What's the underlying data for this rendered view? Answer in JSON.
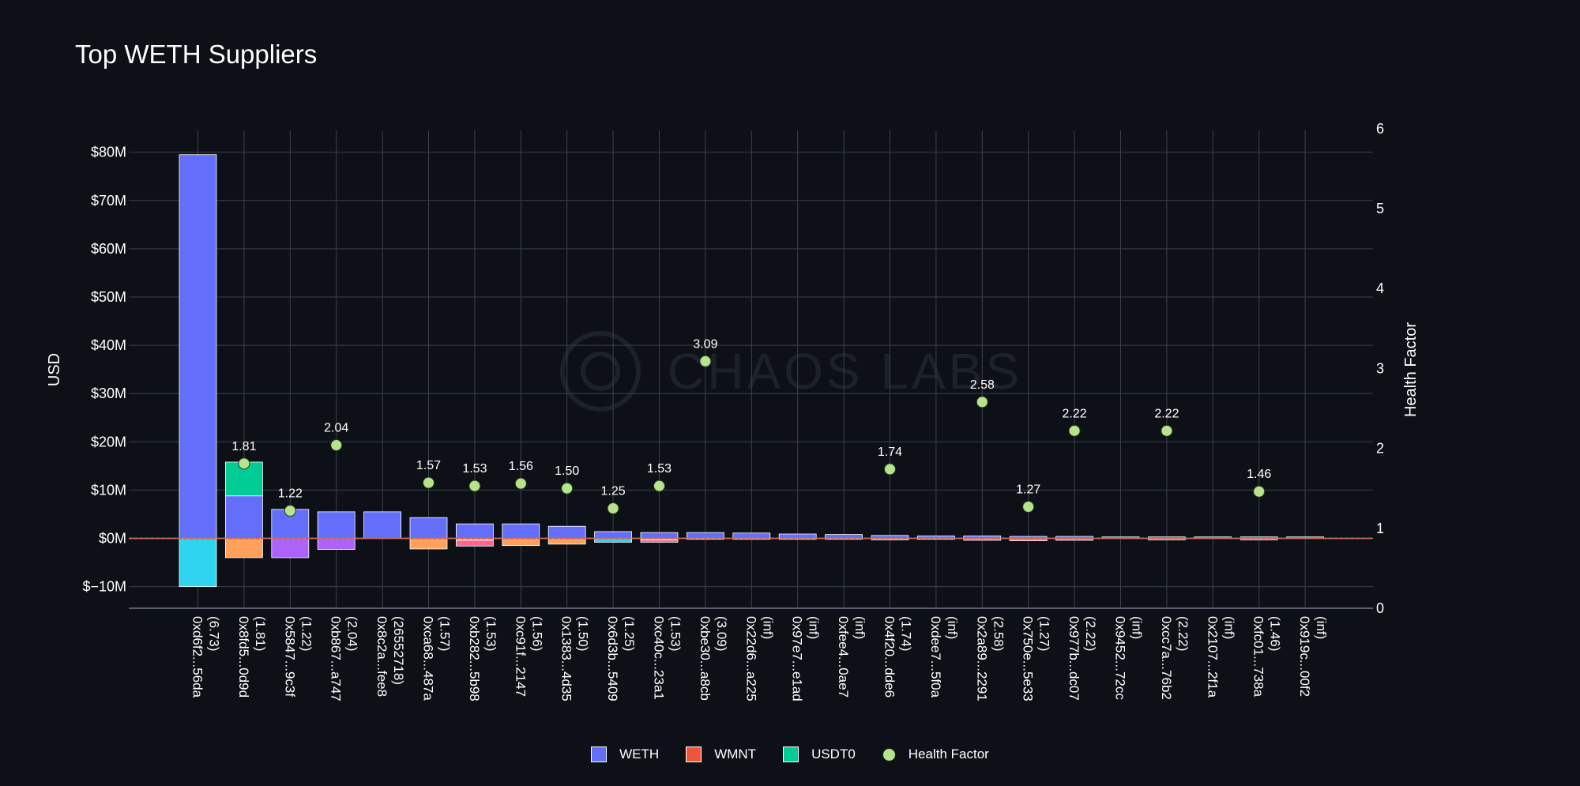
{
  "title": "Top WETH Suppliers",
  "chart_data": {
    "type": "bar",
    "title": "Top WETH Suppliers",
    "ylabel": "USD",
    "y2label": "Health Factor",
    "ylim": [
      -15,
      82
    ],
    "y2lim": [
      0,
      6
    ],
    "yticks": [
      "$80M",
      "$70M",
      "$60M",
      "$50M",
      "$40M",
      "$30M",
      "$20M",
      "$10M",
      "$0M",
      "$−10M"
    ],
    "yticks_values": [
      80,
      70,
      60,
      50,
      40,
      30,
      20,
      10,
      0,
      -10
    ],
    "y2ticks": [
      "6",
      "5",
      "4",
      "3",
      "2",
      "1",
      "0"
    ],
    "y2ticks_values": [
      6,
      5,
      4,
      3,
      2,
      1,
      0
    ],
    "grid": true,
    "stacked": true,
    "legend_position": "bottom-center",
    "categories": [
      [
        "0xd6f2...56da",
        "(6.73)"
      ],
      [
        "0x8fd5...0d9d",
        "(1.81)"
      ],
      [
        "0x5847...9c3f",
        "(1.22)"
      ],
      [
        "0xb867...a747",
        "(2.04)"
      ],
      [
        "0x8c2a...fee8",
        "(26552718)"
      ],
      [
        "0xca68...487a",
        "(1.57)"
      ],
      [
        "0xb282...5b98",
        "(1.53)"
      ],
      [
        "0xc91f...2147",
        "(1.56)"
      ],
      [
        "0x1383...4d35",
        "(1.50)"
      ],
      [
        "0x6d3b...5409",
        "(1.25)"
      ],
      [
        "0xc40c...23a1",
        "(1.53)"
      ],
      [
        "0xbe30...a8cb",
        "(3.09)"
      ],
      [
        "0x22d6...a225",
        "(inf)"
      ],
      [
        "0x97e7...e1ad",
        "(inf)"
      ],
      [
        "0xfee4...0ae7",
        "(inf)"
      ],
      [
        "0x4f20...dde6",
        "(1.74)"
      ],
      [
        "0xdee7...5f0a",
        "(inf)"
      ],
      [
        "0x2a89...2291",
        "(2.58)"
      ],
      [
        "0x750e...5e33",
        "(1.27)"
      ],
      [
        "0x977b...dc07",
        "(2.22)"
      ],
      [
        "0x9452...72cc",
        "(inf)"
      ],
      [
        "0xcc7a...76b2",
        "(2.22)"
      ],
      [
        "0x2107...2f1a",
        "(inf)"
      ],
      [
        "0xfc01...738a",
        "(1.46)"
      ],
      [
        "0x919c...00f2",
        "(inf)"
      ]
    ],
    "series": [
      {
        "name": "WETH",
        "color": "#636efa",
        "values": [
          79.5,
          8.8,
          6.0,
          5.5,
          5.5,
          4.3,
          3.0,
          3.0,
          2.5,
          1.4,
          1.2,
          1.2,
          1.1,
          0.9,
          0.8,
          0.6,
          0.5,
          0.5,
          0.4,
          0.4,
          0.3,
          0.3,
          0.3,
          0.3,
          0.3
        ]
      },
      {
        "name": "WMNT",
        "color": "#ef553b",
        "values": [
          0,
          0,
          0,
          0,
          0,
          0,
          0,
          0,
          0,
          0,
          0,
          0,
          0,
          0,
          0,
          0,
          0,
          0,
          0,
          0,
          0,
          0,
          0,
          0,
          0
        ]
      },
      {
        "name": "USDT0",
        "color": "#00cc96",
        "values": [
          0,
          7.0,
          0,
          0,
          0,
          0,
          0,
          0,
          0,
          0,
          0,
          0,
          0,
          0,
          0,
          0,
          0,
          0,
          0,
          0,
          0,
          0,
          0,
          0,
          0
        ]
      }
    ],
    "negative_series": [
      {
        "name": "debt-cyan",
        "color": "#2ed4ef",
        "values": [
          -10,
          0,
          0,
          0,
          0,
          0,
          0,
          0,
          0,
          -0.8,
          0,
          0,
          0,
          0,
          0,
          0,
          0,
          0,
          0,
          0,
          0,
          0,
          0,
          0,
          0
        ]
      },
      {
        "name": "debt-orange",
        "color": "#ffa15a",
        "values": [
          0,
          -4,
          0,
          0,
          0,
          -2.2,
          -0.4,
          -1.5,
          -1.2,
          0,
          -0.3,
          -0.2,
          0,
          0,
          0,
          -0.3,
          0,
          0,
          0,
          0,
          0,
          0,
          0,
          0,
          0
        ]
      },
      {
        "name": "debt-pink",
        "color": "#ff6692",
        "values": [
          0,
          0,
          0,
          0,
          0,
          0,
          -1.2,
          0,
          0,
          0,
          -0.5,
          0,
          -0.2,
          -0.2,
          -0.2,
          0,
          -0.2,
          -0.4,
          -0.5,
          -0.4,
          0,
          -0.3,
          0,
          -0.3,
          0
        ]
      },
      {
        "name": "debt-purple",
        "color": "#ab63fa",
        "values": [
          0,
          0,
          -4,
          -2.3,
          0,
          0,
          0,
          0,
          0,
          0,
          0,
          0,
          0,
          0,
          0,
          0,
          0,
          0,
          0,
          0,
          0,
          0,
          0,
          0,
          0
        ]
      }
    ],
    "health_factor": {
      "name": "Health Factor",
      "color": "#b5e48c",
      "points": [
        {
          "index": 1,
          "value": 1.81,
          "label": "1.81"
        },
        {
          "index": 2,
          "value": 1.22,
          "label": "1.22"
        },
        {
          "index": 3,
          "value": 2.04,
          "label": "2.04"
        },
        {
          "index": 5,
          "value": 1.57,
          "label": "1.57"
        },
        {
          "index": 6,
          "value": 1.53,
          "label": "1.53"
        },
        {
          "index": 7,
          "value": 1.56,
          "label": "1.56"
        },
        {
          "index": 8,
          "value": 1.5,
          "label": "1.50"
        },
        {
          "index": 9,
          "value": 1.25,
          "label": "1.25"
        },
        {
          "index": 10,
          "value": 1.53,
          "label": "1.53"
        },
        {
          "index": 11,
          "value": 3.09,
          "label": "3.09"
        },
        {
          "index": 15,
          "value": 1.74,
          "label": "1.74"
        },
        {
          "index": 17,
          "value": 2.58,
          "label": "2.58"
        },
        {
          "index": 18,
          "value": 1.27,
          "label": "1.27"
        },
        {
          "index": 19,
          "value": 2.22,
          "label": "2.22"
        },
        {
          "index": 21,
          "value": 2.22,
          "label": "2.22"
        },
        {
          "index": 23,
          "value": 1.46,
          "label": "1.46"
        }
      ],
      "threshold": 1
    }
  },
  "legend": [
    {
      "label": "WETH",
      "color": "#636efa",
      "kind": "bar"
    },
    {
      "label": "WMNT",
      "color": "#ef553b",
      "kind": "bar"
    },
    {
      "label": "USDT0",
      "color": "#00cc96",
      "kind": "bar"
    },
    {
      "label": "Health Factor",
      "color": "#b5e48c",
      "kind": "marker"
    }
  ],
  "watermark": "CHAOS LABS"
}
